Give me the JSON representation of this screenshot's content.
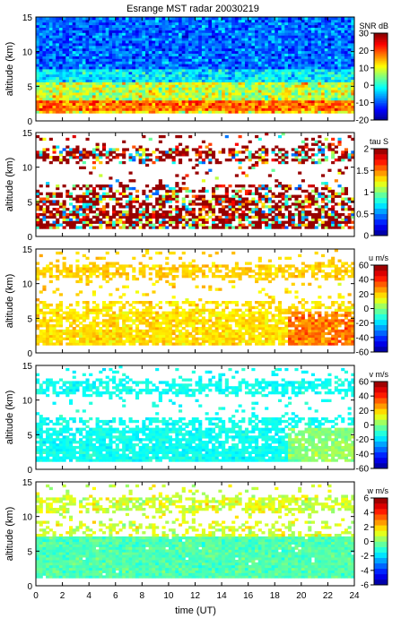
{
  "chart_data": {
    "type": "heatmap",
    "title": "Esrange MST radar 20030219",
    "xlabel": "time (UT)",
    "xlim": [
      0,
      24
    ],
    "xticks": [
      "0",
      "2",
      "4",
      "6",
      "8",
      "10",
      "12",
      "14",
      "16",
      "18",
      "20",
      "22",
      "24"
    ],
    "panels": [
      {
        "id": "snr",
        "ylabel": "altitude (km)",
        "ylim": [
          0,
          15
        ],
        "yticks": [
          "0",
          "5",
          "10",
          "15"
        ],
        "colorbar": {
          "label": "SNR dB",
          "min": -20,
          "max": 30,
          "ticks": [
            "-20",
            "-10",
            "0",
            "10",
            "20",
            "30"
          ]
        },
        "field": "snr",
        "summary": "Strong echoes (yellow-red) from 1.5 to 3 km, moderate (cyan-yellow) 3-6 km, weak (blue) above 6 km to 15 km; no-data gap below about 1 km."
      },
      {
        "id": "tau",
        "ylabel": "altitude (km)",
        "ylim": [
          0,
          15
        ],
        "yticks": [
          "0",
          "5",
          "10",
          "15"
        ],
        "colorbar": {
          "label": "tau S",
          "min": 0,
          "max": 2,
          "ticks": [
            "0",
            "0.5",
            "1",
            "1.5",
            "2"
          ]
        },
        "field": "tau",
        "summary": "Correlation time mostly saturated near 2 s (dark red) in layers 1.5-8 km and 11-13 km; patchy values, blank elsewhere."
      },
      {
        "id": "u",
        "ylabel": "altitude (km)",
        "ylim": [
          0,
          15
        ],
        "yticks": [
          "0",
          "5",
          "10",
          "15"
        ],
        "colorbar": {
          "label": "u m/s",
          "min": -60,
          "max": 60,
          "ticks": [
            "-60",
            "-40",
            "-20",
            "0",
            "20",
            "40",
            "60"
          ]
        },
        "field": "u",
        "summary": "Zonal wind mostly +10 to +30 m/s (green-yellow), rising to about +40 m/s (orange) near 2-5 km after 20 UT."
      },
      {
        "id": "v",
        "ylabel": "altitude (km)",
        "ylim": [
          0,
          15
        ],
        "yticks": [
          "0",
          "5",
          "10",
          "15"
        ],
        "colorbar": {
          "label": "v m/s",
          "min": -60,
          "max": 60,
          "ticks": [
            "-60",
            "-40",
            "-20",
            "0",
            "20",
            "40",
            "60"
          ]
        },
        "field": "v",
        "summary": "Meridional wind mostly -20 to -10 m/s (cyan), approaching 0 to +10 m/s (green) at low levels after 20 UT."
      },
      {
        "id": "w",
        "ylabel": "altitude (km)",
        "ylim": [
          0,
          15
        ],
        "yticks": [
          "0",
          "5",
          "10",
          "15"
        ],
        "colorbar": {
          "label": "w m/s",
          "min": -6,
          "max": 6,
          "ticks": [
            "-6",
            "-4",
            "-2",
            "0",
            "2",
            "4",
            "6"
          ]
        },
        "field": "w",
        "summary": "Vertical wind near 0 m/s (cyan-green) below 7 km, slightly positive (green-yellow) around 7-14 km."
      }
    ]
  }
}
